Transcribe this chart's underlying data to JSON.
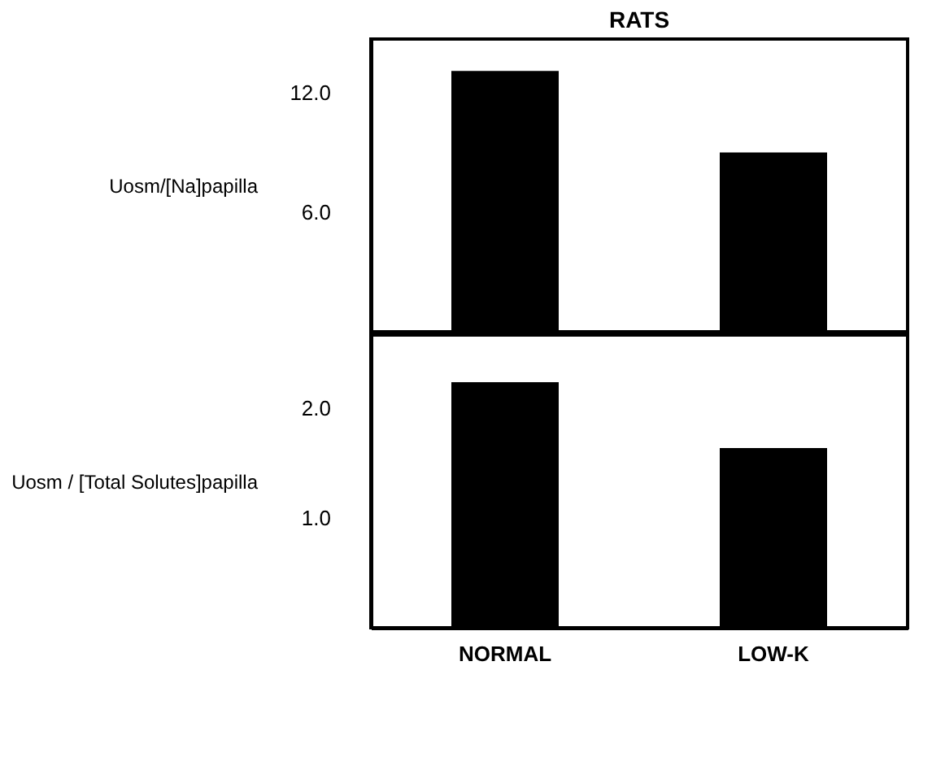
{
  "chart_data": [
    {
      "type": "bar",
      "title": "RATS",
      "categories": [
        null,
        null
      ],
      "values": [
        13.1,
        9.0
      ],
      "color": "#000000",
      "ylabel": "Uosm/[Na]papilla",
      "ylim": [
        0,
        14.7
      ],
      "yticks": [
        {
          "value": 6,
          "label": "6.0"
        },
        {
          "value": 12,
          "label": "12.0"
        }
      ],
      "grid": false,
      "tick_labels": "y"
    },
    {
      "type": "bar",
      "categories": [
        "NORMAL",
        "LOW-K"
      ],
      "values": [
        2.24,
        1.64
      ],
      "color": "#000000",
      "ylabel": "Uosm / [Total Solutes]papilla",
      "ylim": [
        0,
        2.67
      ],
      "yticks": [
        {
          "value": 1,
          "label": "1.0"
        },
        {
          "value": 2,
          "label": "2.0"
        }
      ],
      "grid": false
    }
  ]
}
